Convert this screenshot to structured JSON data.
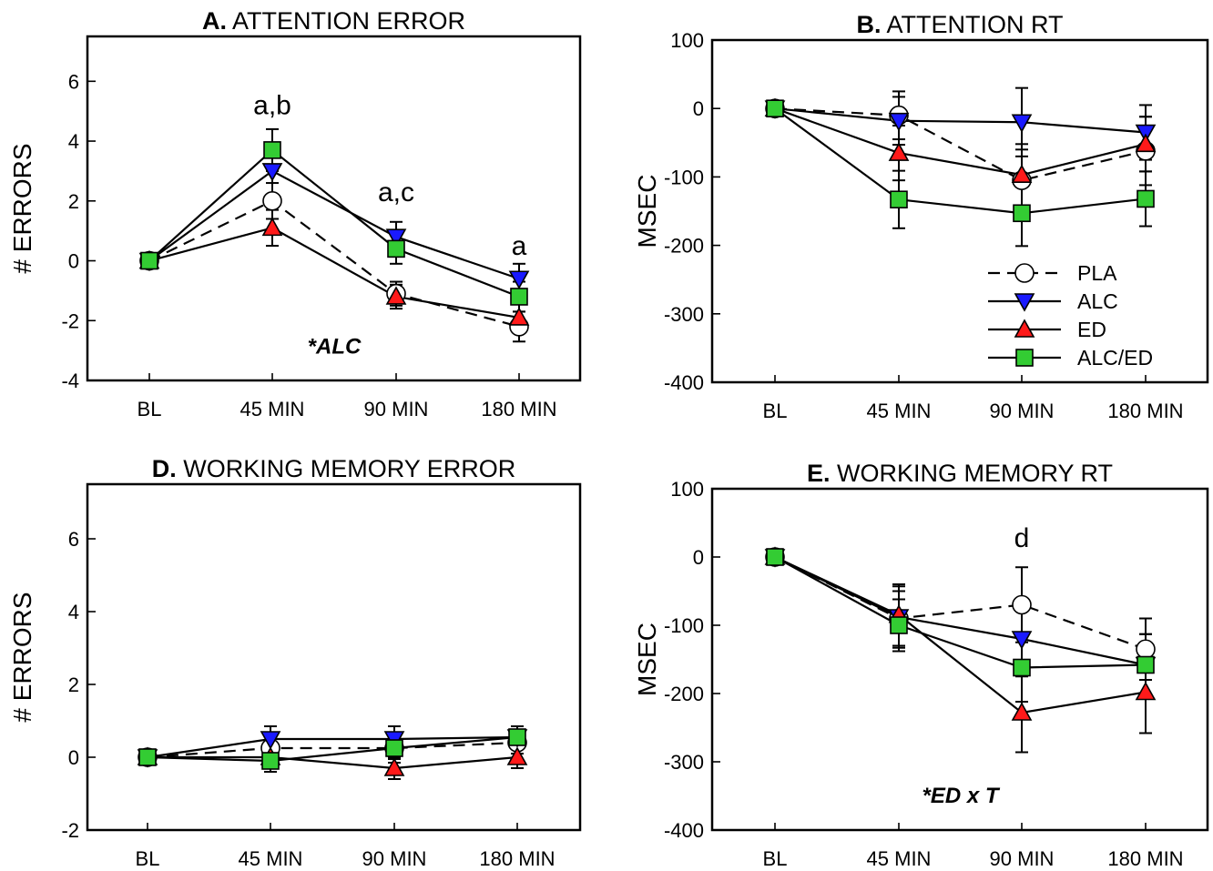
{
  "colors": {
    "PLA": "#ffffff",
    "ALC": "#1a1aff",
    "ED": "#ff1a1a",
    "ALC/ED": "#33cc33",
    "line": "#000000"
  },
  "chart_data": [
    {
      "type": "line",
      "panel_letter": "A.",
      "title": "ATTENTION ERROR",
      "xlabel": "",
      "ylabel": "# ERRORS",
      "categories": [
        "BL",
        "45 MIN",
        "90 MIN",
        "180 MIN"
      ],
      "ylim": [
        -4,
        7.5
      ],
      "yticks": [
        -4,
        -2,
        0,
        2,
        4,
        6
      ],
      "grid": false,
      "series": [
        {
          "name": "PLA",
          "marker": "circle",
          "dash": true,
          "values": [
            0,
            2.0,
            -1.1,
            -2.2
          ],
          "errors": [
            0.2,
            0.6,
            0.4,
            0.5
          ]
        },
        {
          "name": "ALC",
          "marker": "triangle-down",
          "dash": false,
          "values": [
            0,
            3.0,
            0.8,
            -0.6
          ],
          "errors": [
            0.2,
            0.8,
            0.5,
            0.5
          ]
        },
        {
          "name": "ED",
          "marker": "triangle-up",
          "dash": false,
          "values": [
            0,
            1.1,
            -1.2,
            -1.9
          ],
          "errors": [
            0.2,
            0.6,
            0.4,
            0.5
          ]
        },
        {
          "name": "ALC/ED",
          "marker": "square",
          "dash": false,
          "values": [
            0,
            3.7,
            0.4,
            -1.2
          ],
          "errors": [
            0.2,
            0.7,
            0.5,
            0.5
          ]
        }
      ],
      "annotations": [
        {
          "text": "a,b",
          "category": "45 MIN",
          "y": 4.9,
          "bold": false,
          "italic": false
        },
        {
          "text": "a,c",
          "category": "90 MIN",
          "y": 2.0,
          "bold": false,
          "italic": false
        },
        {
          "text": "a",
          "category": "180 MIN",
          "y": 0.2,
          "bold": false,
          "italic": false
        },
        {
          "text": "*ALC",
          "category_pos": 1.5,
          "y": -3.1,
          "bold": true,
          "italic": true
        }
      ],
      "legend": null
    },
    {
      "type": "line",
      "panel_letter": "B.",
      "title": "ATTENTION RT",
      "xlabel": "",
      "ylabel": "MSEC",
      "categories": [
        "BL",
        "45 MIN",
        "90 MIN",
        "180 MIN"
      ],
      "ylim": [
        -400,
        100
      ],
      "yticks": [
        -400,
        -300,
        -200,
        -100,
        0,
        100
      ],
      "grid": false,
      "series": [
        {
          "name": "PLA",
          "marker": "circle",
          "dash": true,
          "values": [
            0,
            -10,
            -105,
            -62
          ],
          "errors": [
            8,
            35,
            45,
            50
          ]
        },
        {
          "name": "ALC",
          "marker": "triangle-down",
          "dash": false,
          "values": [
            0,
            -18,
            -20,
            -35
          ],
          "errors": [
            8,
            35,
            50,
            40
          ]
        },
        {
          "name": "ED",
          "marker": "triangle-up",
          "dash": false,
          "values": [
            0,
            -65,
            -97,
            -52
          ],
          "errors": [
            8,
            40,
            45,
            40
          ]
        },
        {
          "name": "ALC/ED",
          "marker": "square",
          "dash": false,
          "values": [
            0,
            -133,
            -153,
            -132
          ],
          "errors": [
            8,
            42,
            48,
            40
          ]
        }
      ],
      "annotations": [],
      "legend": {
        "placement": "bottom-right",
        "entries": [
          "PLA",
          "ALC",
          "ED",
          "ALC/ED"
        ]
      }
    },
    {
      "type": "line",
      "panel_letter": "D.",
      "title": "WORKING MEMORY ERROR",
      "xlabel": "",
      "ylabel": "# ERRORS",
      "categories": [
        "BL",
        "45 MIN",
        "90 MIN",
        "180 MIN"
      ],
      "ylim": [
        -2,
        7.5
      ],
      "yticks": [
        -2,
        0,
        2,
        4,
        6
      ],
      "grid": false,
      "series": [
        {
          "name": "PLA",
          "marker": "circle",
          "dash": true,
          "values": [
            0,
            0.25,
            0.25,
            0.4
          ],
          "errors": [
            0.2,
            0.3,
            0.3,
            0.3
          ]
        },
        {
          "name": "ALC",
          "marker": "triangle-down",
          "dash": false,
          "values": [
            0,
            0.5,
            0.5,
            0.55
          ],
          "errors": [
            0.2,
            0.35,
            0.35,
            0.3
          ]
        },
        {
          "name": "ED",
          "marker": "triangle-up",
          "dash": false,
          "values": [
            0,
            0.0,
            -0.3,
            0.0
          ],
          "errors": [
            0.2,
            0.3,
            0.3,
            0.3
          ]
        },
        {
          "name": "ALC/ED",
          "marker": "square",
          "dash": false,
          "values": [
            0,
            -0.1,
            0.25,
            0.55
          ],
          "errors": [
            0.2,
            0.3,
            0.4,
            0.3
          ]
        }
      ],
      "annotations": [],
      "legend": null
    },
    {
      "type": "line",
      "panel_letter": "E.",
      "title": "WORKING MEMORY RT",
      "xlabel": "",
      "ylabel": "MSEC",
      "categories": [
        "BL",
        "45 MIN",
        "90 MIN",
        "180 MIN"
      ],
      "ylim": [
        -400,
        100
      ],
      "yticks": [
        -400,
        -300,
        -200,
        -100,
        0,
        100
      ],
      "grid": false,
      "series": [
        {
          "name": "PLA",
          "marker": "circle",
          "dash": true,
          "values": [
            0,
            -90,
            -70,
            -135
          ],
          "errors": [
            8,
            40,
            55,
            45
          ]
        },
        {
          "name": "ALC",
          "marker": "triangle-down",
          "dash": false,
          "values": [
            0,
            -88,
            -120,
            -158
          ],
          "errors": [
            8,
            45,
            55,
            45
          ]
        },
        {
          "name": "ED",
          "marker": "triangle-up",
          "dash": false,
          "values": [
            0,
            -85,
            -228,
            -198
          ],
          "errors": [
            8,
            45,
            58,
            60
          ]
        },
        {
          "name": "ALC/ED",
          "marker": "square",
          "dash": false,
          "values": [
            0,
            -100,
            -162,
            -158
          ],
          "errors": [
            8,
            38,
            50,
            45
          ]
        }
      ],
      "annotations": [
        {
          "text": "d",
          "category": "90 MIN",
          "y": 15,
          "bold": false,
          "italic": false
        },
        {
          "text": "*ED x T",
          "category_pos": 1.5,
          "y": -360,
          "bold": true,
          "italic": true
        }
      ],
      "legend": null
    }
  ]
}
